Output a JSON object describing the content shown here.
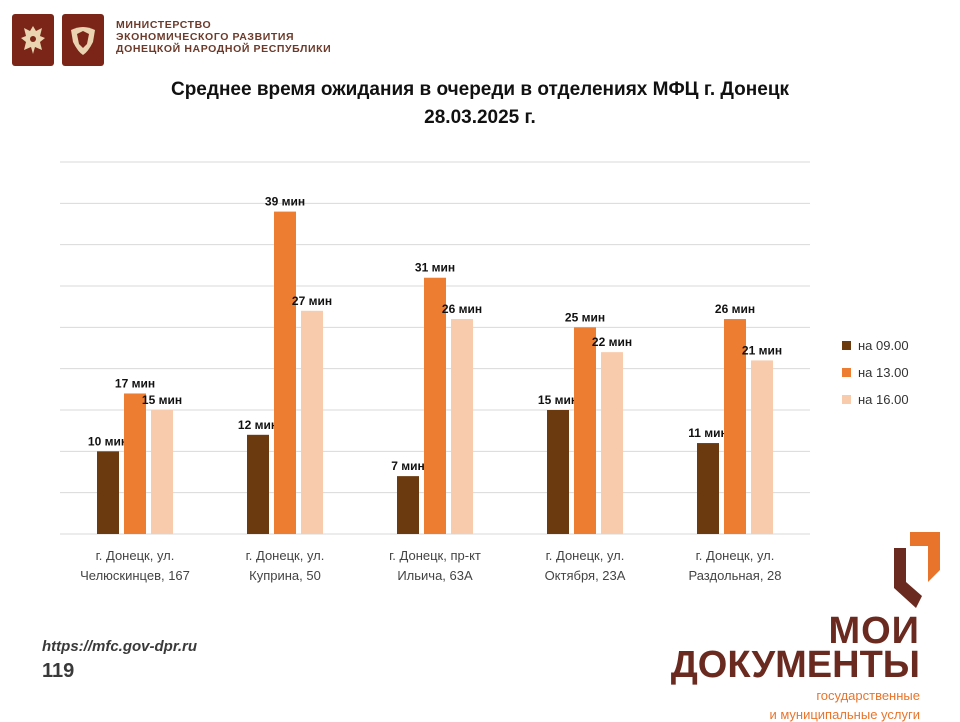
{
  "header": {
    "ministry_lines": [
      "МИНИСТЕРСТВО",
      "ЭКОНОМИЧЕСКОГО РАЗВИТИЯ",
      "ДОНЕЦКОЙ НАРОДНОЙ РЕСПУБЛИКИ"
    ]
  },
  "chart_data": {
    "type": "bar",
    "title": "Среднее время ожидания в очереди в отделениях МФЦ г. Донецк",
    "subtitle": "28.03.2025 г.",
    "categories": [
      [
        "г. Донецк, ул.",
        "Челюскинцев, 167"
      ],
      [
        "г. Донецк, ул.",
        "Куприна, 50"
      ],
      [
        "г. Донецк, пр-кт",
        "Ильича, 63А"
      ],
      [
        "г. Донецк, ул.",
        "Октября, 23А"
      ],
      [
        "г. Донецк, ул.",
        "Раздольная, 28"
      ]
    ],
    "series": [
      {
        "name": "на 09.00",
        "color": "#6b3a0f",
        "values": [
          10,
          12,
          7,
          15,
          11
        ]
      },
      {
        "name": "на 13.00",
        "color": "#ed7d31",
        "values": [
          17,
          39,
          31,
          25,
          26
        ]
      },
      {
        "name": "на 16.00",
        "color": "#f8cbad",
        "values": [
          15,
          27,
          26,
          22,
          21
        ]
      }
    ],
    "value_suffix": " мин",
    "ylim": [
      0,
      45
    ],
    "grid": true,
    "legend": "right"
  },
  "footer": {
    "url": "https://mfc.gov-dpr.ru",
    "page_number": "119"
  },
  "brand": {
    "line1": "МОИ",
    "line2": "ДОКУМЕНТЫ",
    "line3": "государственные",
    "line4": "и муниципальные услуги",
    "colors": {
      "dark": "#6b2a20",
      "orange": "#e8742b"
    }
  }
}
